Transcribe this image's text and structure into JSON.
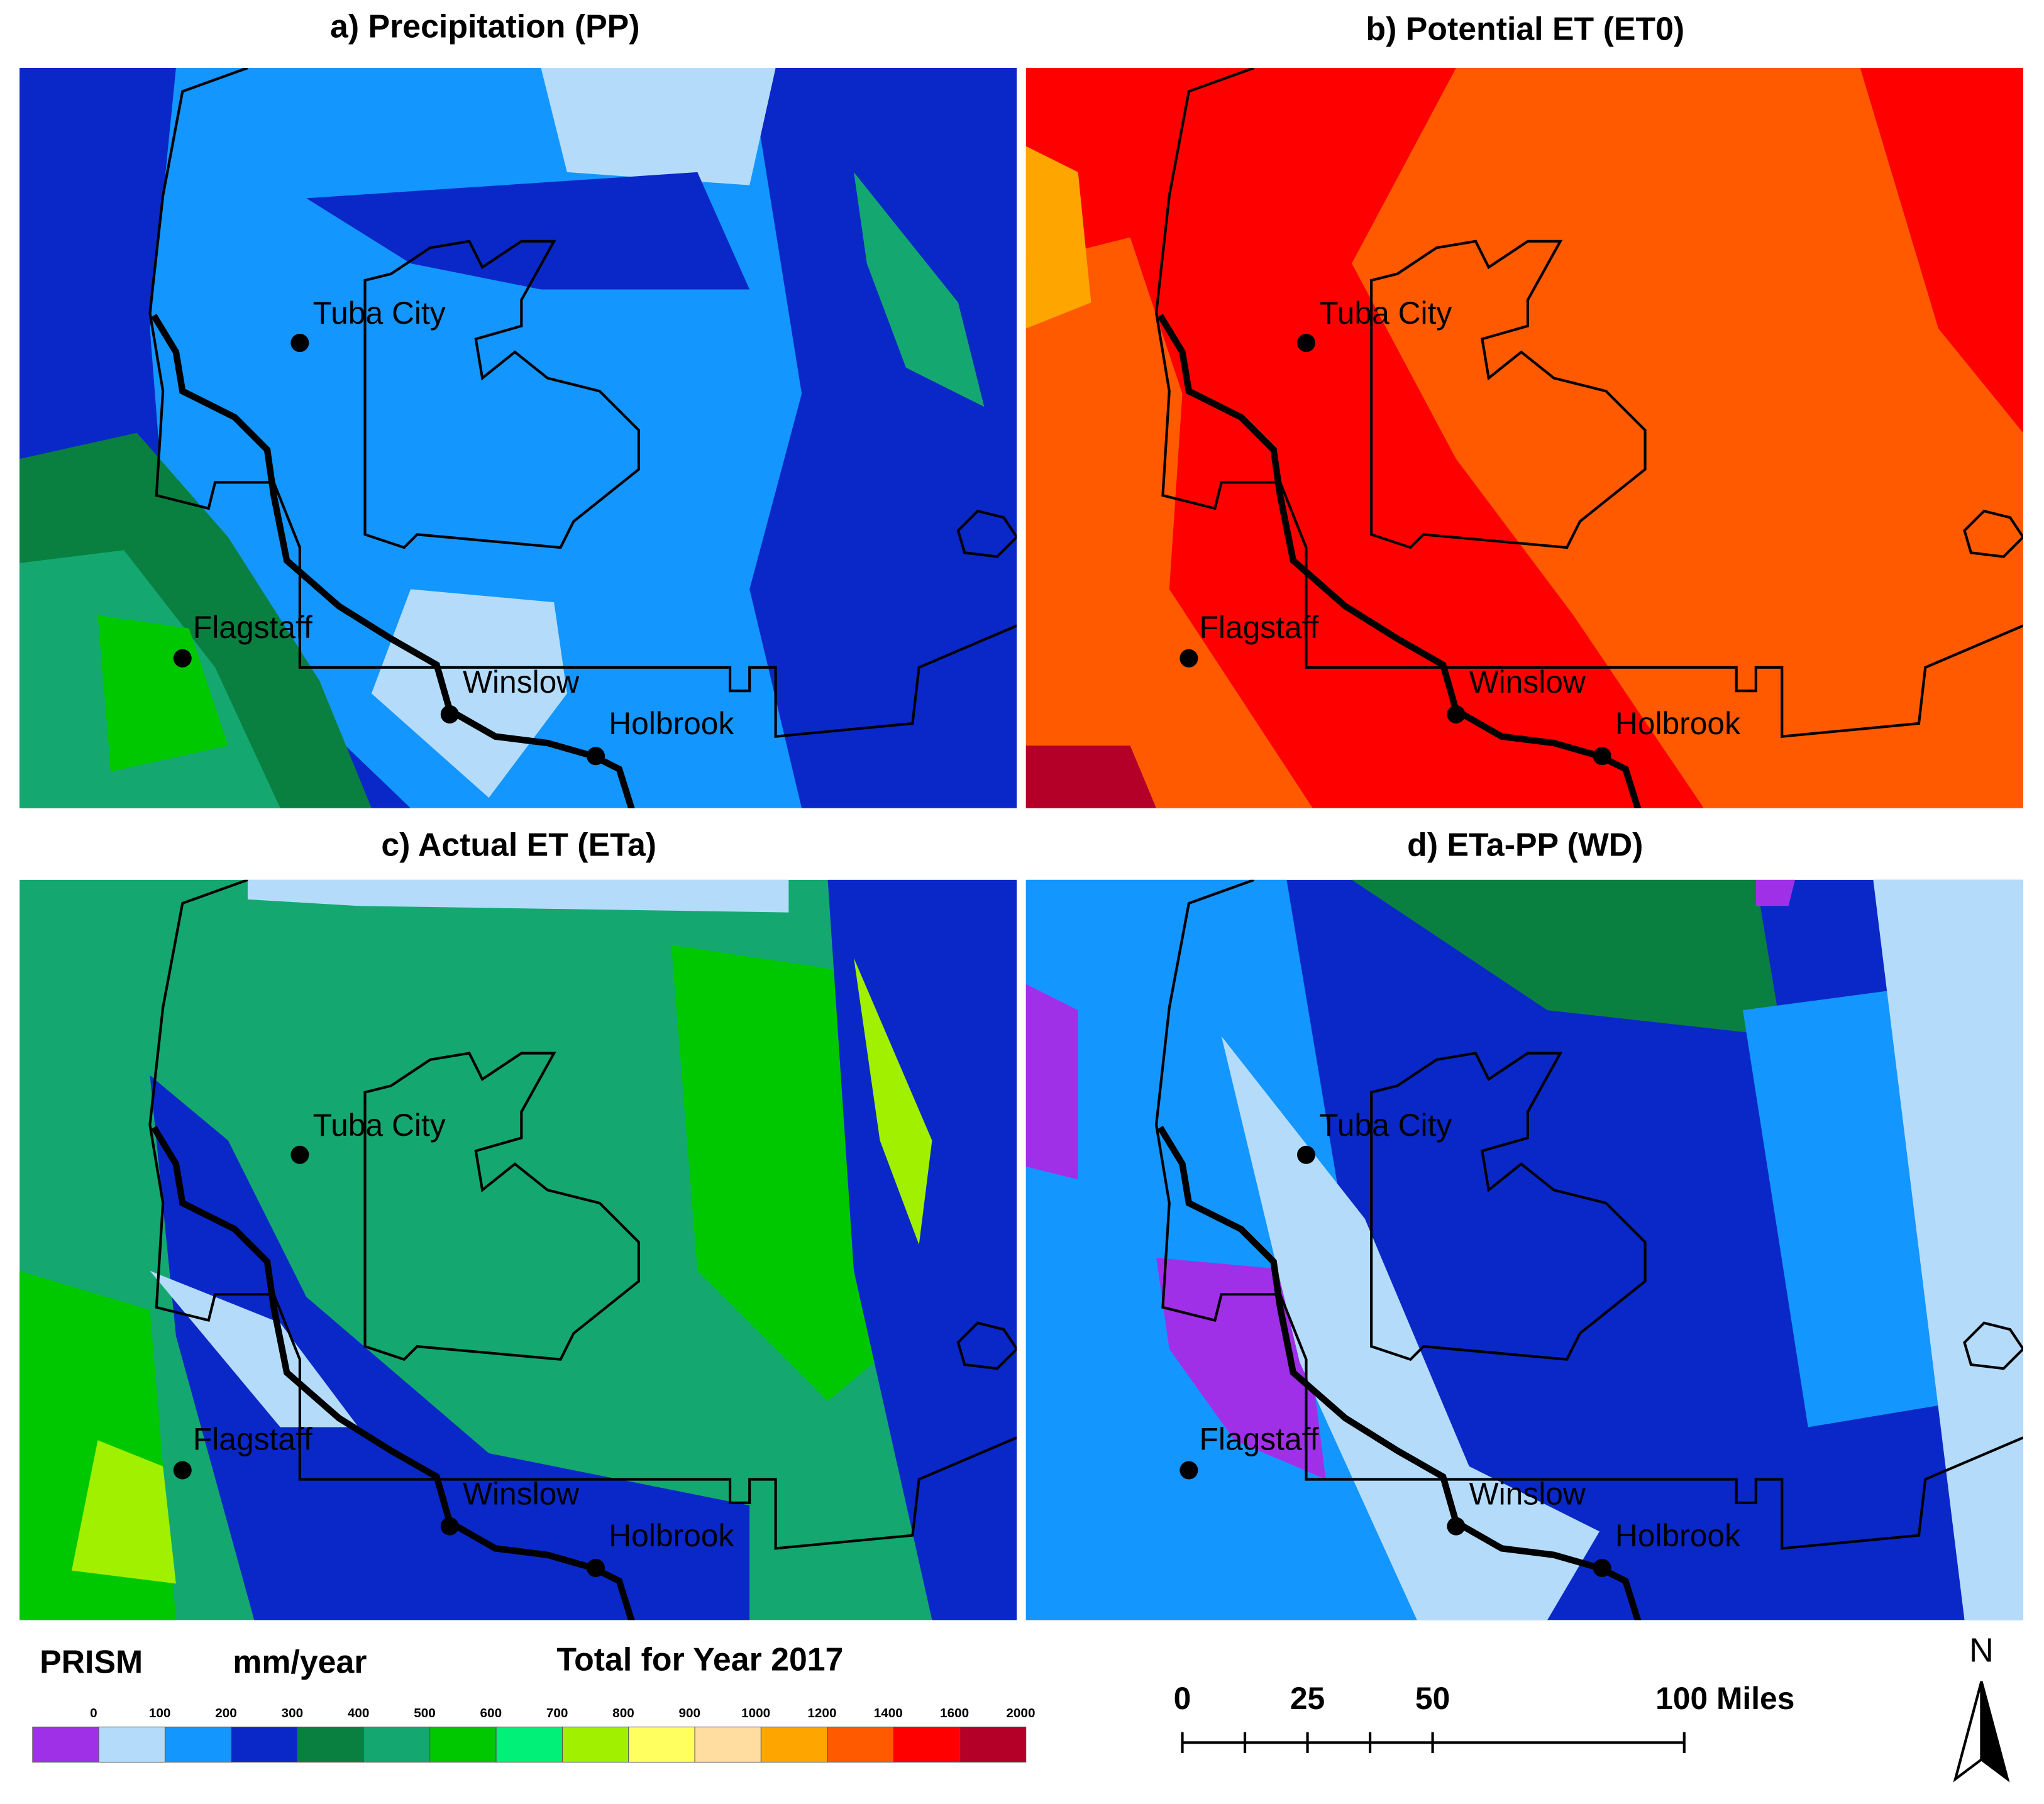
{
  "panels": [
    {
      "title": "a) Precipitation (PP)"
    },
    {
      "title": "b) Potential ET (ET0)"
    },
    {
      "title": "c) Actual ET (ETa)"
    },
    {
      "title": "d) ETa-PP (WD)"
    }
  ],
  "places": [
    "Tuba City",
    "Flagstaff",
    "Winslow",
    "Holbrook"
  ],
  "legend": {
    "source": "PRISM",
    "unit": "mm/year",
    "caption": "Total for Year 2017",
    "ticks": [
      0,
      100,
      200,
      300,
      400,
      500,
      600,
      700,
      800,
      900,
      1000,
      1200,
      1400,
      1600,
      2000
    ],
    "colors": [
      "#a030e8",
      "#b4dcfa",
      "#1496ff",
      "#0a28c8",
      "#0a8040",
      "#14a870",
      "#00c800",
      "#00f078",
      "#a0f000",
      "#ffff60",
      "#ffdca0",
      "#ffa500",
      "#ff5a00",
      "#ff0000",
      "#b40028"
    ]
  },
  "scale_bar": {
    "labels": [
      "0",
      "25",
      "50",
      "100 Miles"
    ]
  },
  "north": "N"
}
